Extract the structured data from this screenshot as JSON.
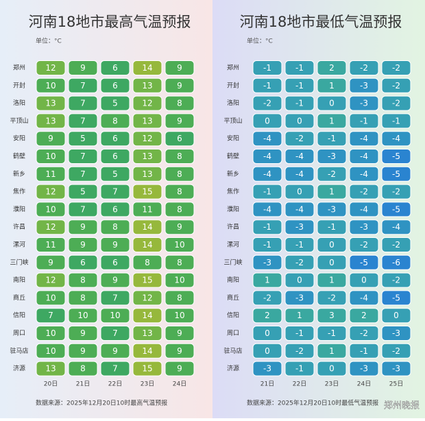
{
  "left": {
    "title": "河南18地市最高气温预报",
    "unit": "单位：°C",
    "days": [
      "20日",
      "21日",
      "22日",
      "23日",
      "24日"
    ],
    "rows": [
      {
        "city": "郑州",
        "values": [
          12,
          9,
          6,
          14,
          9
        ]
      },
      {
        "city": "开封",
        "values": [
          10,
          7,
          6,
          13,
          9
        ]
      },
      {
        "city": "洛阳",
        "values": [
          13,
          7,
          5,
          12,
          8
        ]
      },
      {
        "city": "平顶山",
        "values": [
          13,
          7,
          8,
          13,
          9
        ]
      },
      {
        "city": "安阳",
        "values": [
          9,
          5,
          6,
          12,
          6
        ]
      },
      {
        "city": "鹤壁",
        "values": [
          10,
          7,
          6,
          13,
          8
        ]
      },
      {
        "city": "新乡",
        "values": [
          11,
          7,
          5,
          13,
          8
        ]
      },
      {
        "city": "焦作",
        "values": [
          12,
          5,
          7,
          15,
          8
        ]
      },
      {
        "city": "濮阳",
        "values": [
          10,
          7,
          6,
          11,
          8
        ]
      },
      {
        "city": "许昌",
        "values": [
          12,
          9,
          8,
          14,
          9
        ]
      },
      {
        "city": "漯河",
        "values": [
          11,
          9,
          9,
          14,
          10
        ]
      },
      {
        "city": "三门峡",
        "values": [
          9,
          6,
          6,
          8,
          8
        ]
      },
      {
        "city": "南阳",
        "values": [
          12,
          8,
          9,
          15,
          10
        ]
      },
      {
        "city": "商丘",
        "values": [
          10,
          8,
          7,
          12,
          8
        ]
      },
      {
        "city": "信阳",
        "values": [
          7,
          10,
          10,
          14,
          10
        ]
      },
      {
        "city": "周口",
        "values": [
          10,
          9,
          7,
          13,
          9
        ]
      },
      {
        "city": "驻马店",
        "values": [
          10,
          9,
          9,
          14,
          9
        ]
      },
      {
        "city": "济源",
        "values": [
          13,
          8,
          7,
          15,
          9
        ]
      }
    ],
    "source": "数据来源：2025年12月20日10时最高气温预报"
  },
  "right": {
    "title": "河南18地市最低气温预报",
    "unit": "单位：°C",
    "days": [
      "21日",
      "22日",
      "23日",
      "24日",
      "25日"
    ],
    "rows": [
      {
        "city": "郑州",
        "values": [
          -1,
          -1,
          2,
          -2,
          -2
        ]
      },
      {
        "city": "开封",
        "values": [
          -1,
          -1,
          1,
          -3,
          -2
        ]
      },
      {
        "city": "洛阳",
        "values": [
          -2,
          -1,
          0,
          -3,
          -2
        ]
      },
      {
        "city": "平顶山",
        "values": [
          0,
          0,
          1,
          -1,
          -1
        ]
      },
      {
        "city": "安阳",
        "values": [
          -4,
          -2,
          -1,
          -4,
          -4
        ]
      },
      {
        "city": "鹤壁",
        "values": [
          -4,
          -4,
          -3,
          -4,
          -5
        ]
      },
      {
        "city": "新乡",
        "values": [
          -4,
          -4,
          -2,
          -4,
          -5
        ]
      },
      {
        "city": "焦作",
        "values": [
          -1,
          0,
          1,
          -2,
          -2
        ]
      },
      {
        "city": "濮阳",
        "values": [
          -4,
          -4,
          -3,
          -4,
          -5
        ]
      },
      {
        "city": "许昌",
        "values": [
          -1,
          -3,
          -1,
          -3,
          -4
        ]
      },
      {
        "city": "漯河",
        "values": [
          -1,
          -1,
          0,
          -2,
          -2
        ]
      },
      {
        "city": "三门峡",
        "values": [
          -3,
          -2,
          0,
          -5,
          -6
        ]
      },
      {
        "city": "南阳",
        "values": [
          1,
          0,
          1,
          0,
          -2
        ]
      },
      {
        "city": "商丘",
        "values": [
          -2,
          -3,
          -2,
          -4,
          -5
        ]
      },
      {
        "city": "信阳",
        "values": [
          2,
          1,
          3,
          2,
          0
        ]
      },
      {
        "city": "周口",
        "values": [
          0,
          -1,
          -1,
          -2,
          -3
        ]
      },
      {
        "city": "驻马店",
        "values": [
          0,
          -2,
          1,
          -1,
          -2
        ]
      },
      {
        "city": "济源",
        "values": [
          -3,
          -1,
          0,
          -3,
          -3
        ]
      }
    ],
    "source": "数据来源：2025年12月20日10时最低气温预报"
  },
  "watermark": "郑州晚报"
}
